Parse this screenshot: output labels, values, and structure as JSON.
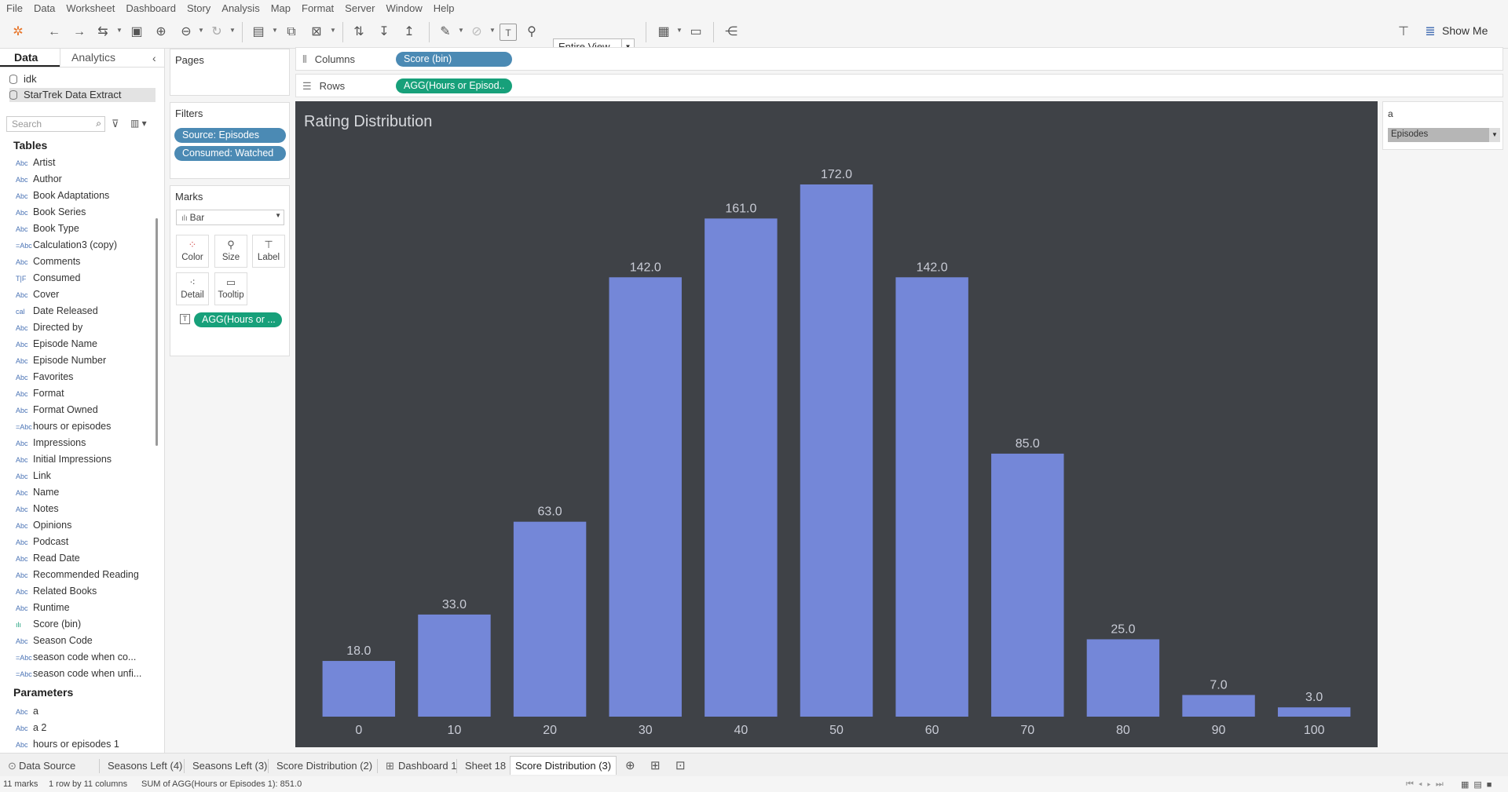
{
  "menu": [
    "File",
    "Data",
    "Worksheet",
    "Dashboard",
    "Story",
    "Analysis",
    "Map",
    "Format",
    "Server",
    "Window",
    "Help"
  ],
  "toolbar": {
    "view_mode": "Entire View",
    "show_me": "Show Me"
  },
  "data_pane": {
    "tabs": [
      "Data",
      "Analytics"
    ],
    "sources": [
      "idk",
      "StarTrek Data Extract"
    ],
    "search_placeholder": "Search",
    "tables_title": "Tables",
    "fields": [
      {
        "type": "Abc",
        "name": "Artist"
      },
      {
        "type": "Abc",
        "name": "Author"
      },
      {
        "type": "Abc",
        "name": "Book Adaptations"
      },
      {
        "type": "Abc",
        "name": "Book Series"
      },
      {
        "type": "Abc",
        "name": "Book Type"
      },
      {
        "type": "=Abc",
        "name": "Calculation3 (copy)"
      },
      {
        "type": "Abc",
        "name": "Comments"
      },
      {
        "type": "T|F",
        "name": "Consumed"
      },
      {
        "type": "Abc",
        "name": "Cover"
      },
      {
        "type": "cal",
        "name": "Date Released"
      },
      {
        "type": "Abc",
        "name": "Directed by"
      },
      {
        "type": "Abc",
        "name": "Episode Name"
      },
      {
        "type": "Abc",
        "name": "Episode Number"
      },
      {
        "type": "Abc",
        "name": "Favorites"
      },
      {
        "type": "Abc",
        "name": "Format"
      },
      {
        "type": "Abc",
        "name": "Format Owned"
      },
      {
        "type": "=Abc",
        "name": "hours or episodes"
      },
      {
        "type": "Abc",
        "name": "Impressions"
      },
      {
        "type": "Abc",
        "name": "Initial Impressions"
      },
      {
        "type": "Abc",
        "name": "Link"
      },
      {
        "type": "Abc",
        "name": "Name"
      },
      {
        "type": "Abc",
        "name": "Notes"
      },
      {
        "type": "Abc",
        "name": "Opinions"
      },
      {
        "type": "Abc",
        "name": "Podcast"
      },
      {
        "type": "Abc",
        "name": "Read Date"
      },
      {
        "type": "Abc",
        "name": "Recommended Reading"
      },
      {
        "type": "Abc",
        "name": "Related Books"
      },
      {
        "type": "Abc",
        "name": "Runtime"
      },
      {
        "type": "ılı",
        "name": "Score (bin)"
      },
      {
        "type": "Abc",
        "name": "Season Code"
      },
      {
        "type": "=Abc",
        "name": "season code when co..."
      },
      {
        "type": "=Abc",
        "name": "season code when unfi..."
      }
    ],
    "parameters_title": "Parameters",
    "parameters": [
      {
        "type": "Abc",
        "name": "a"
      },
      {
        "type": "Abc",
        "name": "a 2"
      },
      {
        "type": "Abc",
        "name": "hours or episodes 1"
      }
    ]
  },
  "cards": {
    "pages_title": "Pages",
    "filters_title": "Filters",
    "filters": [
      "Source: Episodes",
      "Consumed: Watched"
    ],
    "marks_title": "Marks",
    "mark_type": "Bar",
    "mark_buttons": [
      "Color",
      "Size",
      "Label",
      "Detail",
      "Tooltip"
    ],
    "label_pill": "AGG(Hours or ..."
  },
  "shelves": {
    "columns_label": "Columns",
    "columns_pill": "Score (bin)",
    "rows_label": "Rows",
    "rows_pill": "AGG(Hours or Episod.."
  },
  "legend": {
    "title": "a",
    "value": "Episodes"
  },
  "colors": {
    "bar": "#7487d8",
    "view_bg": "#3f4247",
    "label": "#c9ccd6"
  },
  "chart_data": {
    "type": "bar",
    "title": "Rating Distribution",
    "categories": [
      "0",
      "10",
      "20",
      "30",
      "40",
      "50",
      "60",
      "70",
      "80",
      "90",
      "100"
    ],
    "values": [
      18.0,
      33.0,
      63.0,
      142.0,
      161.0,
      172.0,
      142.0,
      85.0,
      25.0,
      7.0,
      3.0
    ],
    "labels": [
      "18.0",
      "33.0",
      "63.0",
      "142.0",
      "161.0",
      "172.0",
      "142.0",
      "85.0",
      "25.0",
      "7.0",
      "3.0"
    ],
    "ylim": [
      0,
      172
    ],
    "grid": false,
    "legend": "none"
  },
  "sheet_tabs": [
    "Data Source",
    "Seasons Left (4)",
    "Seasons Left (3)",
    "Score Distribution (2)",
    "Dashboard 1",
    "Sheet 18",
    "Score Distribution (3)"
  ],
  "status": {
    "marks": "11 marks",
    "dims": "1 row by 11 columns",
    "sum": "SUM of AGG(Hours or Episodes 1): 851.0"
  }
}
